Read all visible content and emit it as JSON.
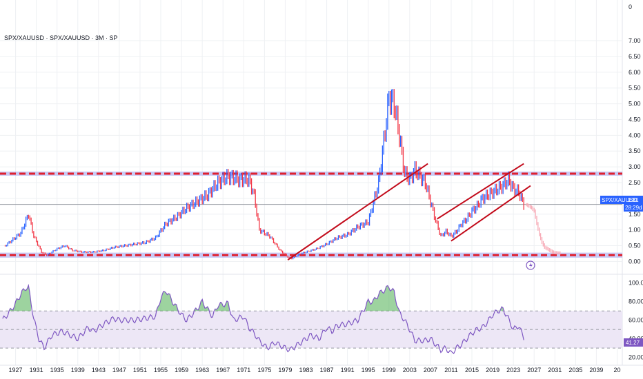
{
  "header": {
    "title": "SPX/XAUUSD · SPX/XAUUSD · 3M · SP"
  },
  "price_label": {
    "symbol": "SPX/XAUUSD",
    "value": "1.81",
    "countdown": "28:29d"
  },
  "rsi_label": {
    "value": "41.27"
  },
  "top_tick": "0",
  "colors": {
    "bar_up": "#2962ff",
    "bar_down": "#f23645",
    "forecast": "#f7a8b4",
    "trendline": "#c20a1a",
    "zone_fill": "#b7b8f2",
    "zone_dash": "#e0202e",
    "price_line": "#9598a1",
    "badge": "#2962ff",
    "rsi_line": "#7e57c2",
    "rsi_band": "#ede7f6",
    "rsi_fill_overbought": "#4caf50",
    "grid": "#eef0f3"
  },
  "chart_data": [
    {
      "type": "bar",
      "name": "SPX/XAUUSD",
      "title": "SPX/XAUUSD · SPX/XAUUSD · 3M · SP",
      "xlabel": "",
      "ylabel": "",
      "x_ticks": [
        "1927",
        "1931",
        "1935",
        "1939",
        "1943",
        "1947",
        "1951",
        "1955",
        "1959",
        "1963",
        "1967",
        "1971",
        "1975",
        "1979",
        "1983",
        "1987",
        "1991",
        "1995",
        "1999",
        "2003",
        "2007",
        "2011",
        "2015",
        "2019",
        "2023",
        "2027",
        "2031",
        "2035",
        "2039",
        "20"
      ],
      "y_ticks": [
        "0.00",
        "0.50",
        "1.00",
        "1.50",
        "2.00",
        "2.50",
        "3.00",
        "3.50",
        "4.00",
        "4.50",
        "5.00",
        "5.50",
        "6.00",
        "6.50",
        "7.00"
      ],
      "ylim": [
        -0.1,
        7.7
      ],
      "xlim": [
        1924.0,
        2044.0
      ],
      "grid": true,
      "series": [
        {
          "name": "SPX/XAUUSD",
          "x": [
            1925,
            1928,
            1929.5,
            1930.5,
            1932,
            1933,
            1935,
            1936.5,
            1938,
            1940,
            1942,
            1944,
            1946,
            1948,
            1950,
            1952,
            1954,
            1956,
            1958,
            1960,
            1962,
            1964,
            1966,
            1968,
            1970,
            1972,
            1973,
            1974,
            1976,
            1978,
            1980,
            1982,
            1985,
            1987,
            1989,
            1991,
            1993,
            1995,
            1997,
            1998,
            1999,
            2000,
            2001,
            2002,
            2003,
            2004,
            2005,
            2006,
            2007,
            2008,
            2009,
            2010,
            2011,
            2012,
            2013,
            2014,
            2015,
            2016,
            2017,
            2018,
            2019,
            2020,
            2021,
            2022,
            2023,
            2024,
            2025
          ],
          "values": [
            0.5,
            0.9,
            1.5,
            0.8,
            0.3,
            0.2,
            0.4,
            0.5,
            0.35,
            0.3,
            0.3,
            0.35,
            0.45,
            0.5,
            0.55,
            0.6,
            0.75,
            1.2,
            1.4,
            1.7,
            1.9,
            2.1,
            2.5,
            2.7,
            2.6,
            2.6,
            2.1,
            1.0,
            0.8,
            0.35,
            0.08,
            0.25,
            0.4,
            0.55,
            0.75,
            0.85,
            1.1,
            1.25,
            2.5,
            3.8,
            5.2,
            5.0,
            4.0,
            2.8,
            2.6,
            2.9,
            2.7,
            2.5,
            1.9,
            1.3,
            0.8,
            0.95,
            0.8,
            0.95,
            1.2,
            1.35,
            1.6,
            1.75,
            2.0,
            2.1,
            2.2,
            2.3,
            2.4,
            2.6,
            2.3,
            2.2,
            1.81
          ]
        },
        {
          "name": "forecast",
          "x": [
            2025.5,
            2026,
            2026.5,
            2027,
            2027.5,
            2028,
            2028.5,
            2029,
            2029.5,
            2030,
            2030.5,
            2031,
            2031.5,
            2032
          ],
          "values": [
            1.8,
            1.75,
            1.7,
            1.6,
            1.2,
            0.85,
            0.6,
            0.45,
            0.4,
            0.35,
            0.3,
            0.28,
            0.27,
            0.27
          ]
        }
      ],
      "trendlines": [
        {
          "x": [
            1979.5,
            2006.5
          ],
          "y": [
            0.05,
            3.1
          ]
        },
        {
          "x": [
            2008.3,
            2025.0
          ],
          "y": [
            1.35,
            3.1
          ]
        },
        {
          "x": [
            2011.0,
            2026.3
          ],
          "y": [
            0.65,
            2.4
          ]
        }
      ],
      "zones": [
        {
          "y": [
            0.12,
            0.28
          ]
        },
        {
          "y": [
            2.72,
            2.85
          ]
        }
      ],
      "last_price": 1.81
    },
    {
      "type": "line",
      "name": "RSI",
      "y_ticks": [
        "20.00",
        "40.00",
        "60.00",
        "80.00",
        "100.00"
      ],
      "ylim": [
        16,
        105
      ],
      "band": [
        30,
        70
      ],
      "mid": 50,
      "series": [
        {
          "name": "RSI",
          "x": [
            1924.5,
            1926,
            1927,
            1928,
            1929,
            1929.5,
            1930.5,
            1931.5,
            1932.5,
            1934,
            1936,
            1937.5,
            1939,
            1941,
            1942,
            1944,
            1946,
            1947,
            1948,
            1950,
            1952,
            1954,
            1955,
            1956,
            1957.5,
            1959,
            1960,
            1962,
            1963,
            1965,
            1966,
            1968,
            1969,
            1971,
            1972,
            1973,
            1974,
            1975.5,
            1977,
            1979,
            1980,
            1982,
            1984,
            1985.5,
            1987,
            1988,
            1989,
            1991,
            1993,
            1995,
            1996,
            1997,
            1998,
            1999,
            2000,
            2001,
            2002,
            2003,
            2004,
            2006,
            2007,
            2008,
            2009,
            2010,
            2011,
            2012,
            2013,
            2014,
            2015,
            2016,
            2017,
            2018,
            2019,
            2020,
            2021,
            2022,
            2023,
            2024,
            2025
          ],
          "values": [
            60,
            70,
            78,
            88,
            95,
            95,
            62,
            40,
            30,
            44,
            48,
            44,
            40,
            52,
            48,
            56,
            62,
            60,
            60,
            60,
            62,
            64,
            84,
            92,
            78,
            66,
            60,
            72,
            80,
            64,
            76,
            78,
            60,
            64,
            52,
            46,
            38,
            30,
            36,
            30,
            28,
            36,
            44,
            40,
            52,
            48,
            54,
            56,
            60,
            80,
            80,
            88,
            92,
            96,
            90,
            68,
            60,
            50,
            38,
            38,
            40,
            34,
            28,
            30,
            24,
            30,
            34,
            40,
            46,
            50,
            52,
            58,
            66,
            70,
            72,
            62,
            50,
            54,
            41.27
          ]
        }
      ]
    }
  ]
}
